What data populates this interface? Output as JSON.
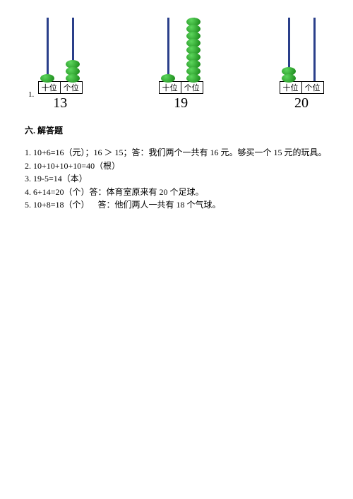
{
  "abacus": {
    "place_labels": {
      "tens": "十位",
      "ones": "个位"
    },
    "item_number": "1.",
    "items": [
      {
        "tens_beads": 1,
        "ones_beads": 3,
        "number": "13"
      },
      {
        "tens_beads": 1,
        "ones_beads": 9,
        "number": "19"
      },
      {
        "tens_beads": 2,
        "ones_beads": 0,
        "number": "20"
      }
    ],
    "bead_color": "#1e9e1e",
    "rod_color": "#2a3f8a"
  },
  "section6": {
    "title": "六. 解答题",
    "answers": [
      "1. 10+6=16（元）；16 ＞ 15；答：我们两个一共有 16 元。够买一个 15 元的玩具。",
      "2. 10+10+10+10=40（根）",
      "3. 19-5=14（本）",
      "4. 6+14=20（个）答：体育室原来有 20 个足球。",
      "5. 10+8=18（个） 答：他们两人一共有 18 个气球。"
    ]
  }
}
